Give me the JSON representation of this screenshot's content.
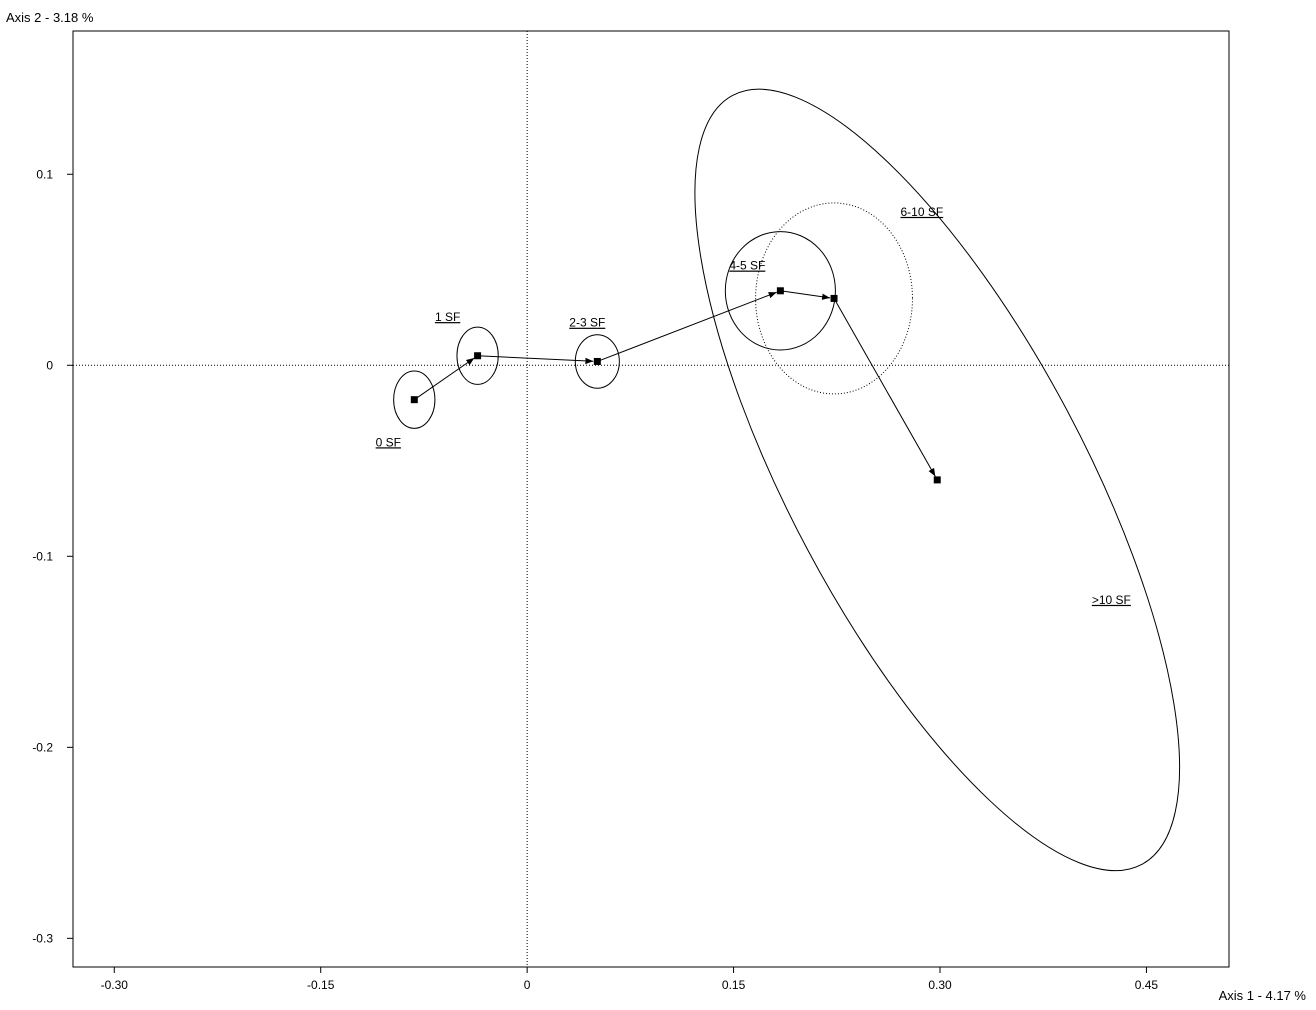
{
  "chart_data": {
    "type": "scatter",
    "title": "",
    "xlabel": "Axis 1  -  4.17 %",
    "ylabel": "Axis 2  -  3.18 %",
    "xlim": [
      -0.33,
      0.51
    ],
    "ylim": [
      -0.315,
      0.175
    ],
    "x_ticks": [
      -0.3,
      -0.15,
      0,
      0.15,
      0.3,
      0.45
    ],
    "x_tick_labels": [
      "-0.30",
      "-0.15",
      "0",
      "0.15",
      "0.30",
      "0.45"
    ],
    "y_ticks": [
      0.1,
      0,
      -0.1,
      -0.2,
      -0.3
    ],
    "y_tick_labels": [
      "0.1",
      "0",
      "-0.1",
      "-0.2",
      "-0.3"
    ],
    "origin_lines": true,
    "grid": false,
    "legend": "none",
    "points": [
      {
        "label": "0 SF",
        "x": -0.082,
        "y": -0.018,
        "ellipse": {
          "rx": 0.015,
          "ry": 0.015,
          "angle": 0,
          "style": "solid"
        }
      },
      {
        "label": "1 SF",
        "x": -0.036,
        "y": 0.005,
        "ellipse": {
          "rx": 0.015,
          "ry": 0.015,
          "angle": 0,
          "style": "solid"
        }
      },
      {
        "label": "2-3 SF",
        "x": 0.051,
        "y": 0.002,
        "ellipse": {
          "rx": 0.016,
          "ry": 0.014,
          "angle": 0,
          "style": "solid"
        }
      },
      {
        "label": "4-5 SF",
        "x": 0.184,
        "y": 0.039,
        "ellipse": {
          "rx": 0.04,
          "ry": 0.031,
          "angle": 0,
          "style": "solid"
        }
      },
      {
        "label": "6-10 SF",
        "x": 0.223,
        "y": 0.035,
        "ellipse": {
          "rx": 0.057,
          "ry": 0.05,
          "angle": 0,
          "style": "dotted"
        }
      },
      {
        "label": ">10 SF",
        "x": 0.298,
        "y": -0.06,
        "ellipse": {
          "rx": 0.107,
          "ry": 0.228,
          "angle": 28,
          "style": "solid"
        }
      }
    ],
    "trajectory": [
      ">",
      "0 SF",
      "1 SF",
      "2-3 SF",
      "4-5 SF",
      "6-10 SF",
      ">10 SF"
    ]
  }
}
